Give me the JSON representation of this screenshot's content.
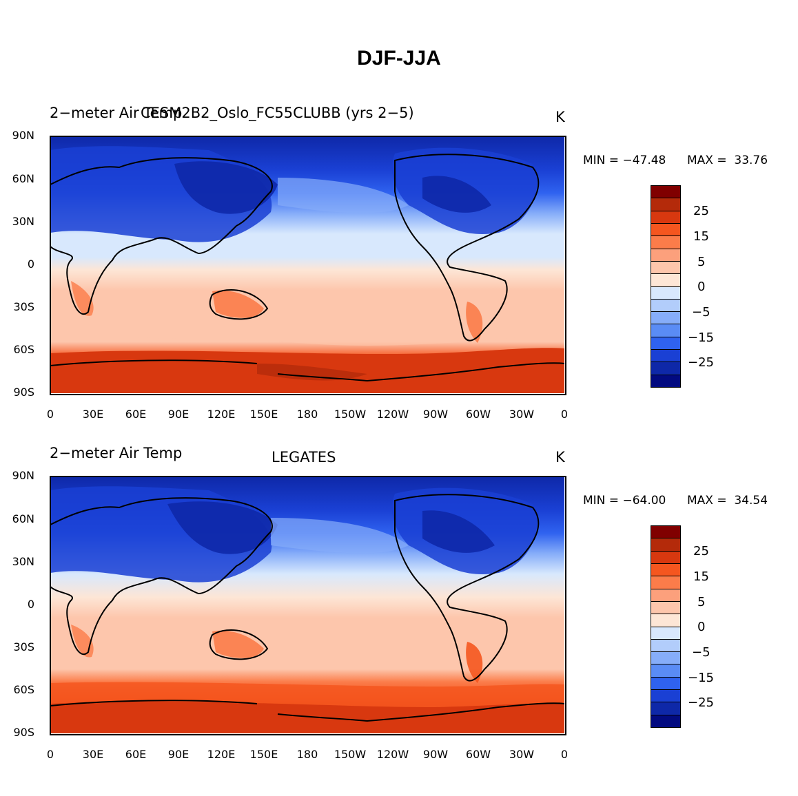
{
  "figure": {
    "title": "DJF-JJA"
  },
  "panels": [
    {
      "left_title": "2−meter Air Temp",
      "center_title": "CESM2B2_Oslo_FC55CLUBB (yrs 2−5)",
      "right_title": "K",
      "min_text": "MIN = −47.48",
      "max_text": "MAX =  33.76"
    },
    {
      "left_title": "2−meter Air Temp",
      "center_title": "LEGATES",
      "right_title": "K",
      "min_text": "MIN = −64.00",
      "max_text": "MAX =  34.54"
    }
  ],
  "axes": {
    "y_ticks": [
      "90N",
      "60N",
      "30N",
      "0",
      "30S",
      "60S",
      "90S"
    ],
    "x_ticks": [
      "0",
      "30E",
      "60E",
      "90E",
      "120E",
      "150E",
      "180",
      "150W",
      "120W",
      "90W",
      "60W",
      "30W",
      "0"
    ]
  },
  "colorbar": {
    "labels": [
      "25",
      "15",
      "5",
      "0",
      "−5",
      "−15",
      "−25"
    ],
    "colors": [
      "#800000",
      "#b42a0a",
      "#d8380f",
      "#f5561f",
      "#fb7c4a",
      "#fca07c",
      "#fdc6ac",
      "#fde6d6",
      "#d8e8fd",
      "#b2cdfb",
      "#86adf9",
      "#5a8cf5",
      "#2f62ef",
      "#1a40d4",
      "#0e28a8",
      "#020a80"
    ]
  },
  "chart_data": [
    {
      "type": "heatmap",
      "title": "CESM2B2_Oslo_FC55CLUBB (yrs 2−5)",
      "variable": "2−meter Air Temp",
      "units": "K",
      "season_difference": "DJF-JJA",
      "x_range": [
        0,
        360
      ],
      "y_range": [
        -90,
        90
      ],
      "min": -47.48,
      "max": 33.76,
      "contour_levels": [
        -35,
        -30,
        -25,
        -20,
        -15,
        -10,
        -5,
        0,
        5,
        10,
        15,
        20,
        25,
        30,
        35
      ],
      "zonal_band_values": [
        {
          "lat": 85,
          "value": -32
        },
        {
          "lat": 60,
          "value": -40
        },
        {
          "lat": 45,
          "value": -22
        },
        {
          "lat": 30,
          "value": -12
        },
        {
          "lat": 15,
          "value": -4
        },
        {
          "lat": 0,
          "value": 1
        },
        {
          "lat": -15,
          "value": 4
        },
        {
          "lat": -30,
          "value": 7
        },
        {
          "lat": -45,
          "value": 7
        },
        {
          "lat": -60,
          "value": 8
        },
        {
          "lat": -75,
          "value": 28
        },
        {
          "lat": -88,
          "value": 30
        }
      ]
    },
    {
      "type": "heatmap",
      "title": "LEGATES",
      "variable": "2−meter Air Temp",
      "units": "K",
      "season_difference": "DJF-JJA",
      "x_range": [
        0,
        360
      ],
      "y_range": [
        -90,
        90
      ],
      "min": -64.0,
      "max": 34.54,
      "contour_levels": [
        -35,
        -30,
        -25,
        -20,
        -15,
        -10,
        -5,
        0,
        5,
        10,
        15,
        20,
        25,
        30,
        35
      ],
      "zonal_band_values": [
        {
          "lat": 85,
          "value": -30
        },
        {
          "lat": 60,
          "value": -42
        },
        {
          "lat": 45,
          "value": -22
        },
        {
          "lat": 30,
          "value": -12
        },
        {
          "lat": 15,
          "value": -4
        },
        {
          "lat": 0,
          "value": 2
        },
        {
          "lat": -15,
          "value": 5
        },
        {
          "lat": -30,
          "value": 7
        },
        {
          "lat": -45,
          "value": 8
        },
        {
          "lat": -60,
          "value": 16
        },
        {
          "lat": -75,
          "value": 26
        },
        {
          "lat": -88,
          "value": 30
        }
      ]
    }
  ]
}
